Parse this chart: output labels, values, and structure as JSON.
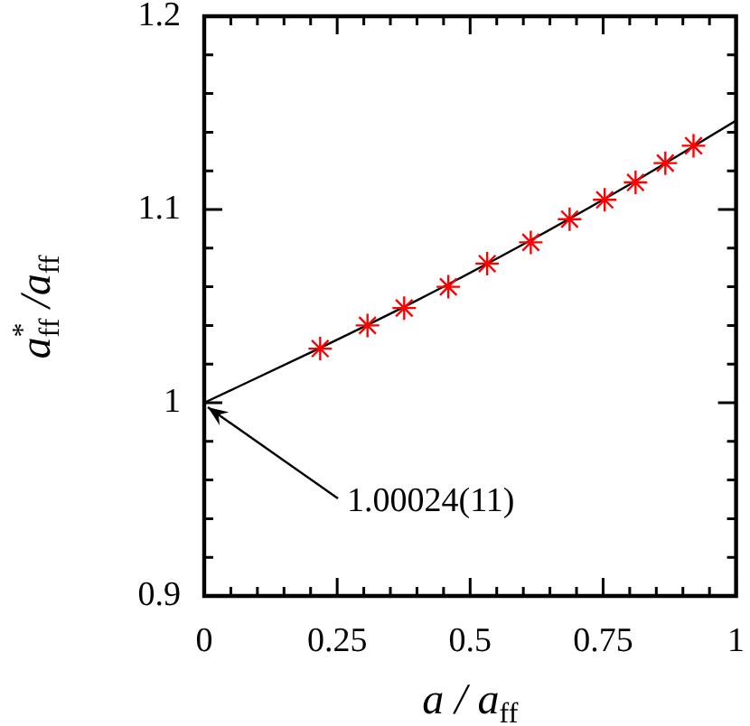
{
  "chart_data": {
    "type": "scatter",
    "xlabel": "a / a$_{ff}$",
    "ylabel": "a$^{*}$$_{ff}$ /a$_{ff}$",
    "marker": "cross",
    "series": [
      {
        "color": "#ff0000",
        "x": [
          0.218,
          0.307,
          0.376,
          0.459,
          0.532,
          0.614,
          0.687,
          0.753,
          0.811,
          0.867,
          0.92
        ],
        "values": [
          1.028,
          1.04,
          1.049,
          1.06,
          1.072,
          1.083,
          1.095,
          1.105,
          1.114,
          1.124,
          1.133
        ]
      },
      {
        "type": "line",
        "color": "#000000",
        "marker": "none",
        "x": [
          0,
          0.2,
          0.4,
          0.6,
          0.8,
          1
        ],
        "values": [
          1.0,
          1.026,
          1.053,
          1.082,
          1.113,
          1.146
        ]
      }
    ],
    "annotations": [
      {
        "text": "1.00024(11)",
        "x": 0,
        "y": 1
      }
    ],
    "xlim": [
      0,
      1
    ],
    "ylim": [
      0.9,
      1.2
    ],
    "xticks": [
      0,
      {
        "value": 0.05,
        "label": null
      },
      {
        "value": 0.1,
        "label": null
      },
      {
        "value": 0.15,
        "label": null
      },
      {
        "value": 0.2,
        "label": null
      },
      0.25,
      {
        "value": 0.3,
        "label": null
      },
      {
        "value": 0.35,
        "label": null
      },
      {
        "value": 0.4,
        "label": null
      },
      {
        "value": 0.45,
        "label": null
      },
      0.5,
      {
        "value": 0.55,
        "label": null
      },
      {
        "value": 0.6,
        "label": null
      },
      {
        "value": 0.65,
        "label": null
      },
      {
        "value": 0.7,
        "label": null
      },
      0.75,
      {
        "value": 0.8,
        "label": null
      },
      {
        "value": 0.85,
        "label": null
      },
      {
        "value": 0.9,
        "label": null
      },
      {
        "value": 0.95,
        "label": null
      },
      1
    ],
    "yticks": [
      0.9,
      {
        "value": 0.92,
        "label": null
      },
      {
        "value": 0.94,
        "label": null
      },
      {
        "value": 0.96,
        "label": null
      },
      {
        "value": 0.98,
        "label": null
      },
      1,
      {
        "value": 1.02,
        "label": null
      },
      {
        "value": 1.04,
        "label": null
      },
      {
        "value": 1.06,
        "label": null
      },
      {
        "value": 1.08,
        "label": null
      },
      1.1,
      {
        "value": 1.12,
        "label": null
      },
      {
        "value": 1.14,
        "label": null
      },
      {
        "value": 1.16,
        "label": null
      },
      {
        "value": 1.18,
        "label": null
      },
      1.2
    ],
    "grid": false,
    "legend": false
  }
}
